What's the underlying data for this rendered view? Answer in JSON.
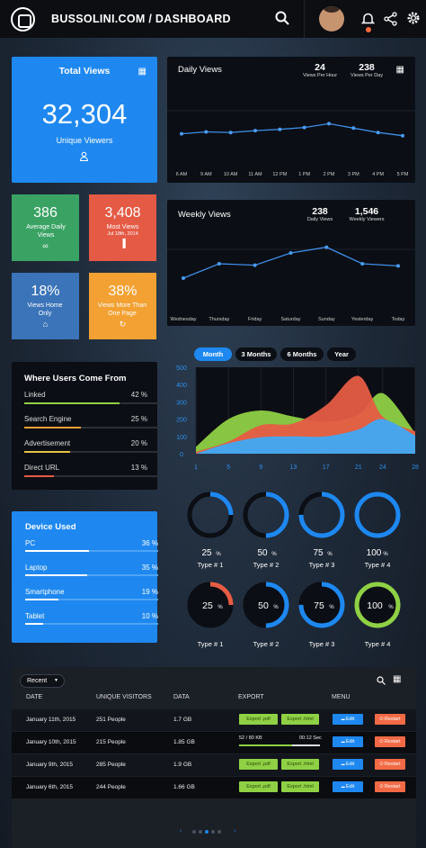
{
  "header": {
    "title": "BUSSOLINI.COM / DASHBOARD"
  },
  "total_views": {
    "title": "Total Views",
    "value": "32,304",
    "subtitle": "Unique Viewers"
  },
  "daily": {
    "title": "Daily Views",
    "stat1": {
      "value": "24",
      "label": "Views Per Hour"
    },
    "stat2": {
      "value": "238",
      "label": "Views Per Day"
    },
    "chart_data": {
      "type": "line",
      "categories": [
        "6 AM",
        "9 AM",
        "10 AM",
        "11 AM",
        "12 PM",
        "1 PM",
        "2 PM",
        "3 PM",
        "4 PM",
        "5 PM"
      ],
      "values": [
        42,
        45,
        44,
        47,
        49,
        52,
        58,
        51,
        44,
        39
      ],
      "ylim": [
        0,
        100
      ]
    }
  },
  "weekly": {
    "title": "Weekly Views",
    "stat1": {
      "value": "238",
      "label": "Daily Views"
    },
    "stat2": {
      "value": "1,546",
      "label": "Weekly Viewers"
    },
    "chart_data": {
      "type": "line",
      "categories": [
        "Wednesday",
        "Thursday",
        "Friday",
        "Saturday",
        "Sunday",
        "Yesterday",
        "Today"
      ],
      "values": [
        35,
        55,
        53,
        70,
        78,
        55,
        52
      ],
      "ylim": [
        0,
        100
      ]
    }
  },
  "tiles": [
    {
      "value": "386",
      "desc": "Average Daily Views",
      "icon": "∞",
      "color": "#3aa363"
    },
    {
      "value": "3,408",
      "desc": "Most Views",
      "sub": "Jul 18th, 2014",
      "icon": "▐",
      "color": "#e45a45"
    },
    {
      "value": "18%",
      "desc": "Views Home Only",
      "icon": "⌂",
      "color": "#3b74b8"
    },
    {
      "value": "38%",
      "desc": "Views More Than One Page",
      "icon": "↻",
      "color": "#f2a132"
    }
  ],
  "period_tabs": [
    "Month",
    "3 Months",
    "6 Months",
    "Year"
  ],
  "area_chart": {
    "chart_data": {
      "type": "area",
      "x": [
        1,
        5,
        9,
        13,
        17,
        21,
        24,
        28
      ],
      "ylim": [
        0,
        500
      ],
      "yticks": [
        "500",
        "400",
        "300",
        "200",
        "100",
        "0"
      ],
      "series": [
        {
          "values": [
            40,
            200,
            250,
            215,
            185,
            225,
            350,
            120
          ],
          "color": "#8fd045"
        },
        {
          "values": [
            10,
            70,
            165,
            175,
            280,
            450,
            215,
            130
          ],
          "color": "#e65c45"
        },
        {
          "values": [
            0,
            60,
            95,
            100,
            100,
            140,
            200,
            105
          ],
          "color": "#3fa9f5"
        }
      ]
    }
  },
  "sources": {
    "title": "Where Users Come From",
    "items": [
      {
        "label": "Linked",
        "pct": "42 %",
        "value": 42,
        "color": "#8fd045"
      },
      {
        "label": "Search Engine",
        "pct": "25 %",
        "value": 25,
        "color": "#f2a132"
      },
      {
        "label": "Advertisement",
        "pct": "20 %",
        "value": 20,
        "color": "#e8c243"
      },
      {
        "label": "Direct URL",
        "pct": "13 %",
        "value": 13,
        "color": "#e45a45"
      }
    ]
  },
  "devices": {
    "title": "Device Used",
    "items": [
      {
        "label": "PC",
        "pct": "36 %",
        "value": 36
      },
      {
        "label": "Laptop",
        "pct": "35 %",
        "value": 35
      },
      {
        "label": "Smartphone",
        "pct": "19 %",
        "value": 19
      },
      {
        "label": "Tablet",
        "pct": "10 %",
        "value": 10
      }
    ]
  },
  "rings_top": [
    {
      "value": "25",
      "unit": "%",
      "label": "Type # 1",
      "pct": 25
    },
    {
      "value": "50",
      "unit": "%",
      "label": "Type # 2",
      "pct": 50
    },
    {
      "value": "75",
      "unit": "%",
      "label": "Type # 3",
      "pct": 75
    },
    {
      "value": "100",
      "unit": "%",
      "label": "Type # 4",
      "pct": 100
    }
  ],
  "rings_bottom": [
    {
      "value": "25",
      "unit": "%",
      "label": "Type # 1",
      "pct": 25,
      "color": "#e65c45"
    },
    {
      "value": "50",
      "unit": "%",
      "label": "Type # 2",
      "pct": 50,
      "color": "#1e88f0"
    },
    {
      "value": "75",
      "unit": "%",
      "label": "Type # 3",
      "pct": 75,
      "color": "#1e88f0"
    },
    {
      "value": "100",
      "unit": "%",
      "label": "Type # 4",
      "pct": 100,
      "color": "#8fd045"
    }
  ],
  "table": {
    "filter": "Recent",
    "headers": [
      "DATE",
      "UNIQUE VISITORS",
      "DATA",
      "EXPORT",
      "MENU"
    ],
    "rows": [
      {
        "date": "January 11th, 2015",
        "visitors": "251 People",
        "data": "1.7 GB",
        "export": [
          "Export .pdf",
          "Export .html"
        ],
        "menu": [
          "Edit",
          "Restart"
        ]
      },
      {
        "date": "January 10th, 2015",
        "visitors": "215 People",
        "data": "1.85 GB",
        "progress": {
          "label": "52 / 80 KB",
          "time": "00:12 Sec",
          "value": 65
        },
        "menu": [
          "Edit",
          "Restart"
        ]
      },
      {
        "date": "January 9th, 2015",
        "visitors": "285 People",
        "data": "1.9 GB",
        "export": [
          "Export .pdf",
          "Export .html"
        ],
        "menu": [
          "Edit",
          "Restart"
        ]
      },
      {
        "date": "January 6th, 2015",
        "visitors": "244 People",
        "data": "1.66 GB",
        "export": [
          "Export .pdf",
          "Export .html"
        ],
        "menu": [
          "Edit",
          "Restart"
        ]
      }
    ]
  },
  "colors": {
    "accent": "#1e88f0",
    "panel": "#0b0e14"
  }
}
